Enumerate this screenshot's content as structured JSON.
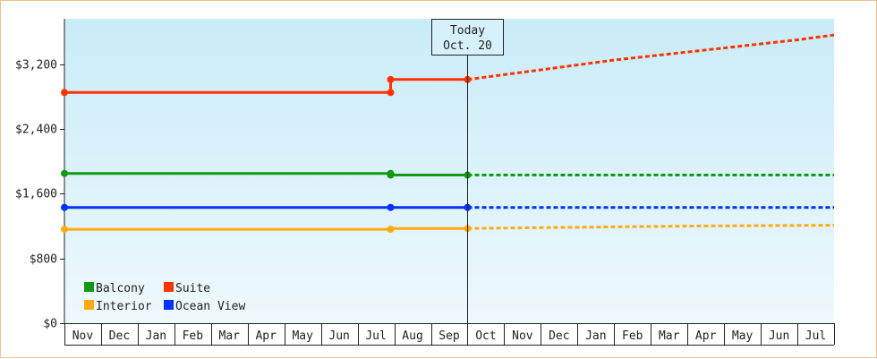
{
  "chart_data": {
    "type": "line",
    "x_categories": [
      "Nov",
      "Dec",
      "Jan",
      "Feb",
      "Mar",
      "Apr",
      "May",
      "Jun",
      "Jul",
      "Aug",
      "Sep",
      "Oct",
      "Nov",
      "Dec",
      "Jan",
      "Feb",
      "Mar",
      "Apr",
      "May",
      "Jun",
      "Jul"
    ],
    "y_ticks": [
      "$0",
      "$800",
      "$1,600",
      "$2,400",
      "$3,200"
    ],
    "ylim": [
      0,
      3760
    ],
    "grid": false,
    "legend_position": "bottom-left",
    "today_marker": {
      "line1": "Today",
      "line2": "Oct. 20",
      "x": 11
    },
    "series": [
      {
        "name": "Balcony",
        "color": "#119911",
        "actual": [
          [
            0,
            1850
          ],
          [
            8.9,
            1850
          ],
          [
            8.9,
            1830
          ],
          [
            11,
            1830
          ]
        ],
        "markers": [
          [
            0,
            1850
          ],
          [
            8.9,
            1850
          ],
          [
            8.9,
            1830
          ],
          [
            11,
            1830
          ]
        ],
        "forecast": [
          [
            11,
            1830
          ],
          [
            21,
            1830
          ]
        ]
      },
      {
        "name": "Suite",
        "color": "#ff3300",
        "actual": [
          [
            0,
            2850
          ],
          [
            8.9,
            2850
          ],
          [
            8.9,
            3010
          ],
          [
            11,
            3010
          ]
        ],
        "markers": [
          [
            0,
            2850
          ],
          [
            8.9,
            2850
          ],
          [
            8.9,
            3010
          ],
          [
            11,
            3010
          ]
        ],
        "forecast": [
          [
            11,
            3010
          ],
          [
            12,
            3070
          ],
          [
            13,
            3130
          ],
          [
            14,
            3190
          ],
          [
            15,
            3250
          ],
          [
            16,
            3300
          ],
          [
            17,
            3350
          ],
          [
            18,
            3400
          ],
          [
            19,
            3450
          ],
          [
            20,
            3500
          ],
          [
            21,
            3560
          ]
        ]
      },
      {
        "name": "Interior",
        "color": "#ffaa11",
        "actual": [
          [
            0,
            1160
          ],
          [
            8.9,
            1160
          ],
          [
            8.9,
            1170
          ],
          [
            11,
            1170
          ]
        ],
        "markers": [
          [
            0,
            1160
          ],
          [
            8.9,
            1160
          ],
          [
            11,
            1170
          ]
        ],
        "forecast": [
          [
            11,
            1170
          ],
          [
            13,
            1180
          ],
          [
            15,
            1190
          ],
          [
            17,
            1200
          ],
          [
            19,
            1205
          ],
          [
            21,
            1210
          ]
        ]
      },
      {
        "name": "Ocean View",
        "color": "#0033ff",
        "actual": [
          [
            0,
            1430
          ],
          [
            11,
            1430
          ]
        ],
        "markers": [
          [
            0,
            1430
          ],
          [
            8.9,
            1430
          ],
          [
            11,
            1430
          ]
        ],
        "forecast": [
          [
            11,
            1430
          ],
          [
            21,
            1430
          ]
        ]
      }
    ],
    "legend": [
      {
        "name": "Balcony",
        "color": "#119911"
      },
      {
        "name": "Suite",
        "color": "#ff3300"
      },
      {
        "name": "Interior",
        "color": "#ffaa11"
      },
      {
        "name": "Ocean View",
        "color": "#0033ff"
      }
    ]
  }
}
